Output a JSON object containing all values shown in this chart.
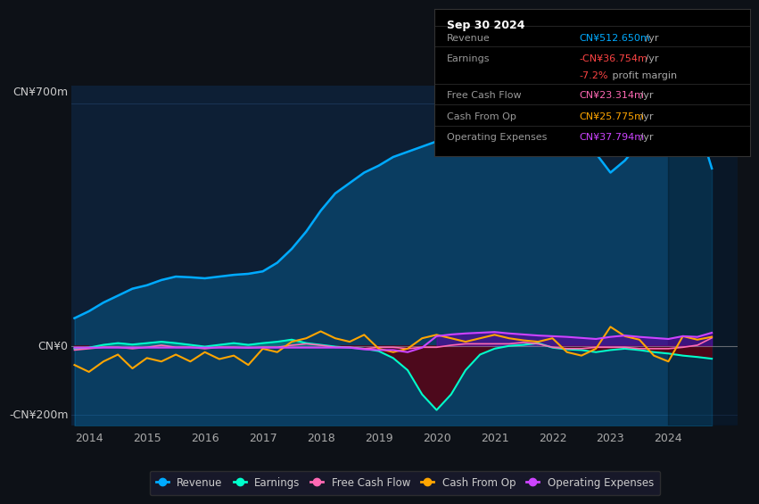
{
  "bg_color": "#0d1117",
  "plot_bg": "#0d1f35",
  "grid_color": "#1e3a5f",
  "ylim": [
    -230,
    750
  ],
  "xlim": [
    2013.7,
    2025.2
  ],
  "xticks": [
    2014,
    2015,
    2016,
    2017,
    2018,
    2019,
    2020,
    2021,
    2022,
    2023,
    2024
  ],
  "ylabel_700": "CN¥700m",
  "ylabel_0": "CN¥0",
  "ylabel_neg200": "-CN¥200m",
  "info_box": {
    "title": "Sep 30 2024",
    "rows": [
      {
        "label": "Revenue",
        "value": "CN¥512.650m /yr",
        "value_color": "#00aaff",
        "label_color": "#999999"
      },
      {
        "label": "Earnings",
        "value": "-CN¥36.754m /yr",
        "value_color": "#ff4444",
        "label_color": "#999999"
      },
      {
        "label": "",
        "value": "-7.2% profit margin",
        "value_color": "#ff4444",
        "label_color": "#999999"
      },
      {
        "label": "Free Cash Flow",
        "value": "CN¥23.314m /yr",
        "value_color": "#ff69b4",
        "label_color": "#999999"
      },
      {
        "label": "Cash From Op",
        "value": "CN¥25.775m /yr",
        "value_color": "#ffa500",
        "label_color": "#999999"
      },
      {
        "label": "Operating Expenses",
        "value": "CN¥37.794m /yr",
        "value_color": "#cc44ff",
        "label_color": "#999999"
      }
    ]
  },
  "series": {
    "revenue": {
      "color": "#00aaff",
      "years": [
        2013.75,
        2014.0,
        2014.25,
        2014.5,
        2014.75,
        2015.0,
        2015.25,
        2015.5,
        2015.75,
        2016.0,
        2016.25,
        2016.5,
        2016.75,
        2017.0,
        2017.25,
        2017.5,
        2017.75,
        2018.0,
        2018.25,
        2018.5,
        2018.75,
        2019.0,
        2019.25,
        2019.5,
        2019.75,
        2020.0,
        2020.25,
        2020.5,
        2020.75,
        2021.0,
        2021.25,
        2021.5,
        2021.75,
        2022.0,
        2022.25,
        2022.5,
        2022.75,
        2023.0,
        2023.25,
        2023.5,
        2023.75,
        2024.0,
        2024.25,
        2024.5,
        2024.75
      ],
      "values": [
        80,
        100,
        125,
        145,
        165,
        175,
        190,
        200,
        198,
        195,
        200,
        205,
        208,
        215,
        240,
        280,
        330,
        390,
        440,
        470,
        500,
        520,
        545,
        560,
        575,
        590,
        600,
        610,
        625,
        640,
        650,
        660,
        675,
        685,
        675,
        615,
        555,
        500,
        535,
        585,
        625,
        650,
        655,
        648,
        512
      ]
    },
    "earnings": {
      "color": "#00ffcc",
      "years": [
        2013.75,
        2014.0,
        2014.25,
        2014.5,
        2014.75,
        2015.0,
        2015.25,
        2015.5,
        2015.75,
        2016.0,
        2016.25,
        2016.5,
        2016.75,
        2017.0,
        2017.25,
        2017.5,
        2017.75,
        2018.0,
        2018.25,
        2018.5,
        2018.75,
        2019.0,
        2019.25,
        2019.5,
        2019.75,
        2020.0,
        2020.25,
        2020.5,
        2020.75,
        2021.0,
        2021.25,
        2021.5,
        2021.75,
        2022.0,
        2022.25,
        2022.5,
        2022.75,
        2023.0,
        2023.25,
        2023.5,
        2023.75,
        2024.0,
        2024.25,
        2024.5,
        2024.75
      ],
      "values": [
        -8,
        -5,
        3,
        8,
        4,
        8,
        12,
        8,
        3,
        -2,
        3,
        8,
        3,
        8,
        12,
        18,
        8,
        3,
        -2,
        -5,
        -8,
        -15,
        -35,
        -70,
        -140,
        -185,
        -140,
        -70,
        -25,
        -8,
        0,
        3,
        8,
        -5,
        -10,
        -12,
        -18,
        -12,
        -8,
        -12,
        -18,
        -22,
        -28,
        -32,
        -37
      ]
    },
    "free_cash_flow": {
      "color": "#ff69b4",
      "years": [
        2013.75,
        2014.0,
        2014.25,
        2014.5,
        2014.75,
        2015.0,
        2015.25,
        2015.5,
        2015.75,
        2016.0,
        2016.25,
        2016.5,
        2016.75,
        2017.0,
        2017.25,
        2017.5,
        2017.75,
        2018.0,
        2018.25,
        2018.5,
        2018.75,
        2019.0,
        2019.25,
        2019.5,
        2019.75,
        2020.0,
        2020.25,
        2020.5,
        2020.75,
        2021.0,
        2021.25,
        2021.5,
        2021.75,
        2022.0,
        2022.25,
        2022.5,
        2022.75,
        2023.0,
        2023.25,
        2023.5,
        2023.75,
        2024.0,
        2024.25,
        2024.5,
        2024.75
      ],
      "values": [
        -12,
        -8,
        -4,
        -4,
        -8,
        -4,
        2,
        -4,
        -4,
        -8,
        -4,
        -4,
        -6,
        -4,
        -4,
        2,
        6,
        2,
        -4,
        -4,
        -8,
        -4,
        -4,
        -8,
        -4,
        -4,
        2,
        6,
        6,
        6,
        6,
        10,
        6,
        -4,
        -8,
        -8,
        -4,
        -4,
        -4,
        -8,
        -8,
        -8,
        -4,
        2,
        23
      ]
    },
    "cash_from_op": {
      "color": "#ffa500",
      "years": [
        2013.75,
        2014.0,
        2014.25,
        2014.5,
        2014.75,
        2015.0,
        2015.25,
        2015.5,
        2015.75,
        2016.0,
        2016.25,
        2016.5,
        2016.75,
        2017.0,
        2017.25,
        2017.5,
        2017.75,
        2018.0,
        2018.25,
        2018.5,
        2018.75,
        2019.0,
        2019.25,
        2019.5,
        2019.75,
        2020.0,
        2020.25,
        2020.5,
        2020.75,
        2021.0,
        2021.25,
        2021.5,
        2021.75,
        2022.0,
        2022.25,
        2022.5,
        2022.75,
        2023.0,
        2023.25,
        2023.5,
        2023.75,
        2024.0,
        2024.25,
        2024.5,
        2024.75
      ],
      "values": [
        -55,
        -75,
        -45,
        -25,
        -65,
        -35,
        -45,
        -25,
        -45,
        -18,
        -38,
        -28,
        -55,
        -8,
        -18,
        12,
        22,
        42,
        22,
        12,
        32,
        -8,
        -18,
        -8,
        22,
        32,
        22,
        12,
        22,
        32,
        22,
        16,
        12,
        22,
        -18,
        -28,
        -8,
        55,
        28,
        18,
        -28,
        -45,
        28,
        18,
        26
      ]
    },
    "operating_expenses": {
      "color": "#cc44ff",
      "years": [
        2013.75,
        2014.0,
        2014.25,
        2014.5,
        2014.75,
        2015.0,
        2015.25,
        2015.5,
        2015.75,
        2016.0,
        2016.25,
        2016.5,
        2016.75,
        2017.0,
        2017.25,
        2017.5,
        2017.75,
        2018.0,
        2018.25,
        2018.5,
        2018.75,
        2019.0,
        2019.25,
        2019.5,
        2019.75,
        2020.0,
        2020.25,
        2020.5,
        2020.75,
        2021.0,
        2021.25,
        2021.5,
        2021.75,
        2022.0,
        2022.25,
        2022.5,
        2022.75,
        2023.0,
        2023.25,
        2023.5,
        2023.75,
        2024.0,
        2024.25,
        2024.5,
        2024.75
      ],
      "values": [
        -5,
        -5,
        -5,
        -5,
        -5,
        -5,
        -5,
        -5,
        -5,
        -5,
        -5,
        -5,
        -5,
        -5,
        -5,
        -5,
        -5,
        -5,
        -5,
        -5,
        -10,
        -12,
        -12,
        -18,
        -5,
        28,
        33,
        36,
        38,
        40,
        36,
        33,
        30,
        28,
        26,
        23,
        20,
        26,
        30,
        26,
        23,
        20,
        28,
        26,
        38
      ]
    }
  },
  "legend": [
    {
      "label": "Revenue",
      "color": "#00aaff"
    },
    {
      "label": "Earnings",
      "color": "#00ffcc"
    },
    {
      "label": "Free Cash Flow",
      "color": "#ff69b4"
    },
    {
      "label": "Cash From Op",
      "color": "#ffa500"
    },
    {
      "label": "Operating Expenses",
      "color": "#cc44ff"
    }
  ]
}
